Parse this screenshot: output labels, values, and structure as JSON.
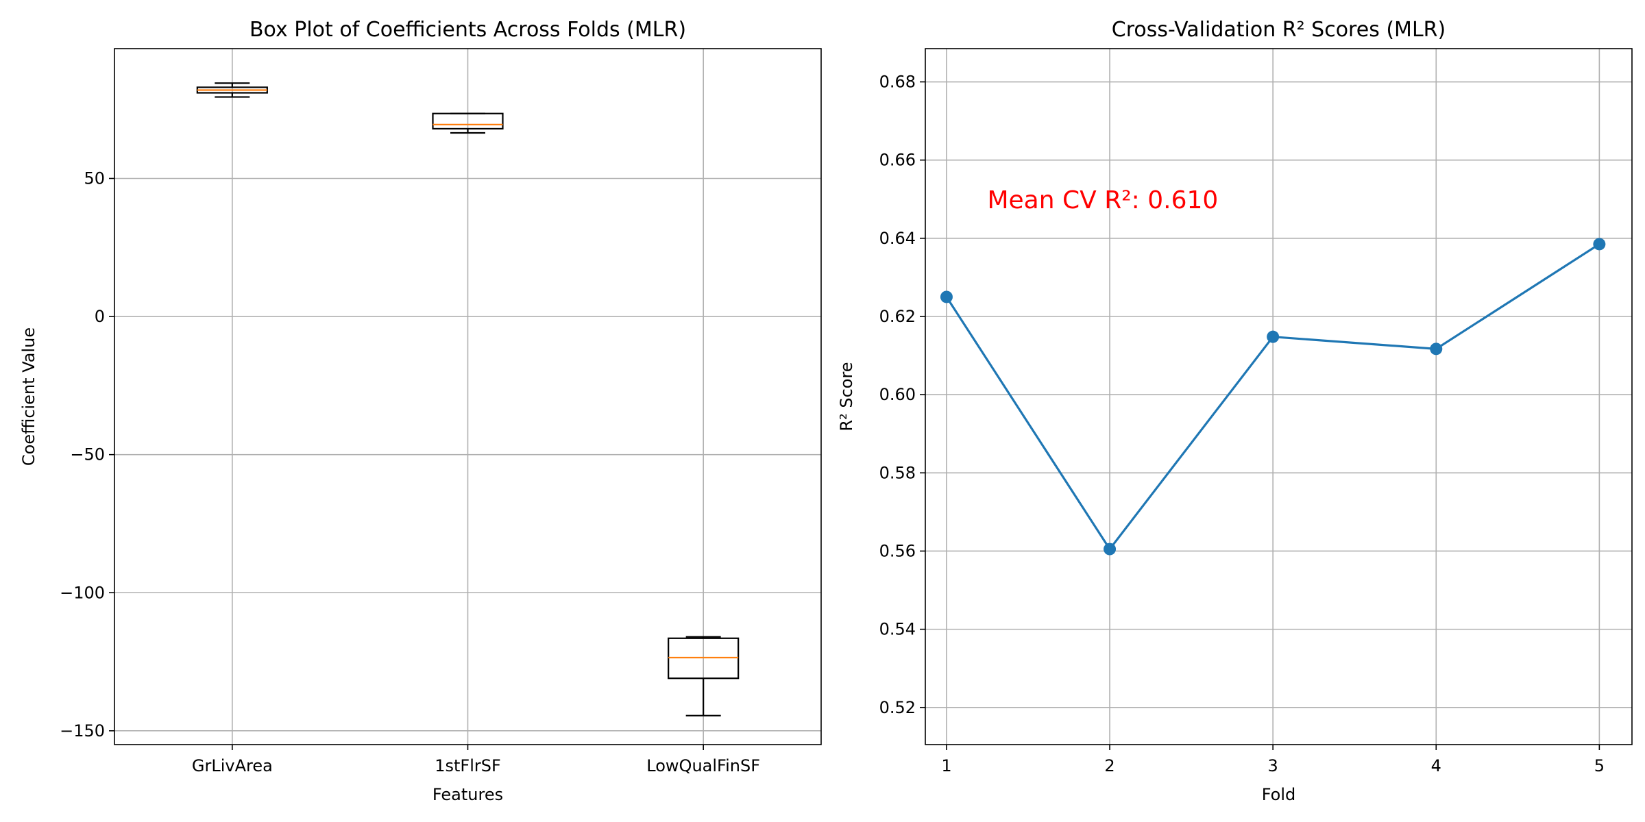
{
  "chart_data": [
    {
      "type": "box",
      "title": "Box Plot of Coefficients Across Folds (MLR)",
      "xlabel": "Features",
      "ylabel": "Coefficient Value",
      "ylim": [
        -155,
        97
      ],
      "yticks": [
        50,
        0,
        -50,
        -100,
        -150
      ],
      "ytick_labels": [
        "50",
        "0",
        "−50",
        "−100",
        "−150"
      ],
      "grid": true,
      "categories": [
        "GrLivArea",
        "1stFlrSF",
        "LowQualFinSF"
      ],
      "boxes": [
        {
          "name": "GrLivArea",
          "whisker_low": 79.5,
          "q1": 81.0,
          "median": 82.0,
          "q3": 83.0,
          "whisker_high": 84.5
        },
        {
          "name": "1stFlrSF",
          "whisker_low": 66.5,
          "q1": 68.0,
          "median": 69.5,
          "q3": 73.5,
          "whisker_high": 73.5
        },
        {
          "name": "LowQualFinSF",
          "whisker_low": -144.5,
          "q1": -131.0,
          "median": -123.5,
          "q3": -116.5,
          "whisker_high": -116.0
        }
      ],
      "colors": {
        "box": "#000000",
        "median": "#ff7f0e"
      }
    },
    {
      "type": "line",
      "title": "Cross-Validation R² Scores (MLR)",
      "xlabel": "Fold",
      "ylabel": "R² Score",
      "xlim": [
        0.87,
        5.2
      ],
      "ylim": [
        0.5105,
        0.6885
      ],
      "xticks": [
        1,
        2,
        3,
        4,
        5
      ],
      "yticks": [
        0.52,
        0.54,
        0.56,
        0.58,
        0.6,
        0.62,
        0.64,
        0.66,
        0.68
      ],
      "ytick_labels": [
        "0.52",
        "0.54",
        "0.56",
        "0.58",
        "0.60",
        "0.62",
        "0.64",
        "0.66",
        "0.68"
      ],
      "grid": true,
      "series": [
        {
          "name": "R²",
          "x": [
            1,
            2,
            3,
            4,
            5
          ],
          "values": [
            0.625,
            0.5605,
            0.6148,
            0.6117,
            0.6385
          ]
        }
      ],
      "annotation": {
        "text": "Mean CV R²: 0.610",
        "x": 1.25,
        "y": 0.65
      },
      "colors": {
        "line": "#1f77b4",
        "annotation": "#ff0000"
      }
    }
  ]
}
